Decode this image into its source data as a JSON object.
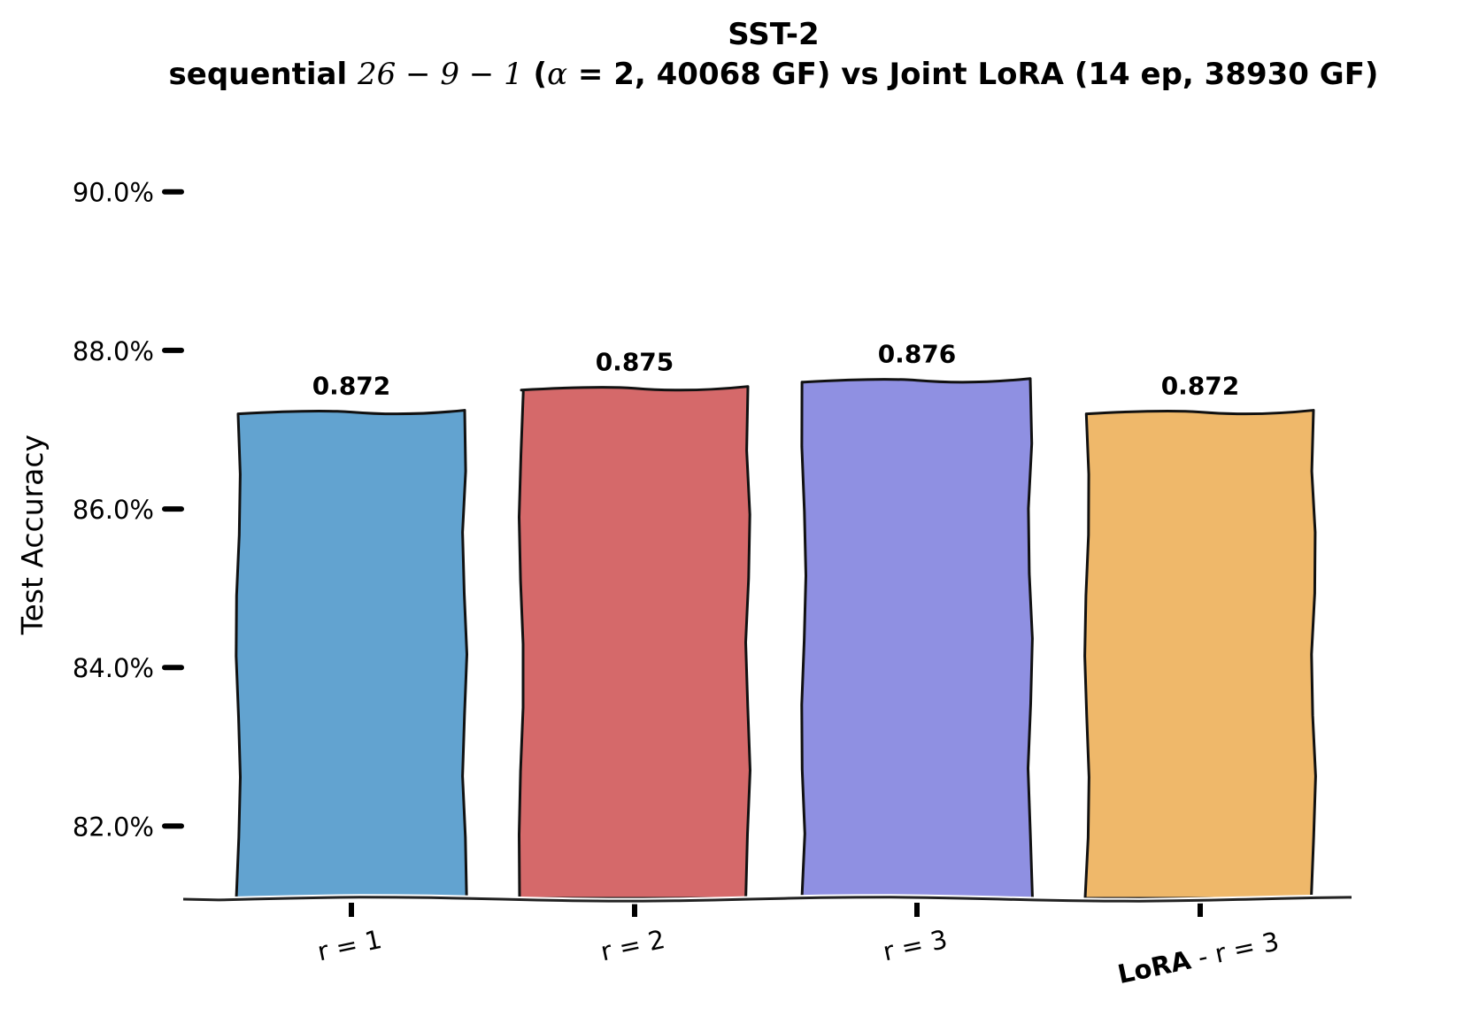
{
  "chart_data": {
    "type": "bar",
    "title_line1": "SST-2",
    "title_line2_parts": [
      {
        "text": "sequential ",
        "math": false
      },
      {
        "text": "26 − 9 − 1",
        "math": true
      },
      {
        "text": " (",
        "math": false
      },
      {
        "text": "α",
        "math": true
      },
      {
        "text": " = 2",
        "math": false
      },
      {
        "text": ", 40068 GF)  vs  Joint LoRA (14 ep, 38930 GF)",
        "math": false
      }
    ],
    "ylabel": "Test Accuracy",
    "ylim": [
      0.811,
      0.906
    ],
    "yticks": [
      0.82,
      0.84,
      0.86,
      0.88,
      0.9
    ],
    "ytick_labels": [
      "82.0%",
      "84.0%",
      "86.0%",
      "88.0%",
      "90.0%"
    ],
    "categories": [
      {
        "bold": "",
        "rest": "r = 1"
      },
      {
        "bold": "",
        "rest": "r = 2"
      },
      {
        "bold": "",
        "rest": "r = 3"
      },
      {
        "bold": "LoRA",
        "rest": " - r = 3"
      }
    ],
    "values": [
      0.872,
      0.875,
      0.876,
      0.872
    ],
    "value_labels": [
      "0.872",
      "0.875",
      "0.876",
      "0.872"
    ],
    "colors": [
      "#62a3d0",
      "#d5696a",
      "#8f90e2",
      "#efb86a"
    ],
    "grid": false,
    "style": "xkcd"
  }
}
